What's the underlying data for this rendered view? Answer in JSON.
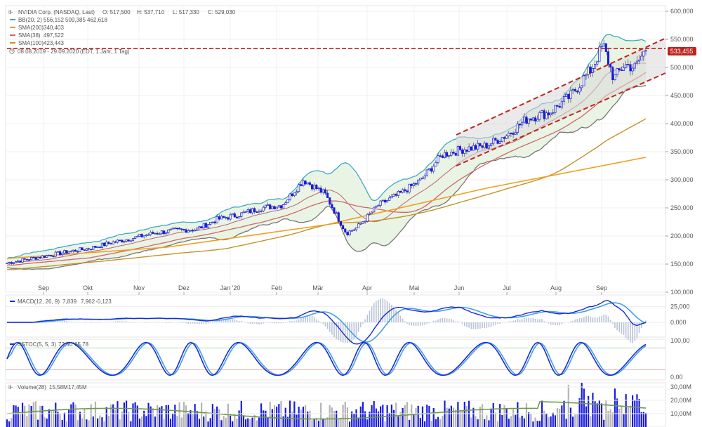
{
  "header": {
    "instrument": "NVIDIA Corp. (NASDAQ, Last)",
    "open": "O: 517,500",
    "high": "H: 537,710",
    "low": "L: 517,330",
    "close": "C: 529,030",
    "bb_label": "BB(20, 2)",
    "bb_values": [
      "556,152",
      "509,385",
      "462,618"
    ],
    "sma200_label": "SMA(200)",
    "sma200_value": "340,403",
    "sma38_label": "SMA(38)",
    "sma38_value": "497,522",
    "sma100_label": "SMA(100)",
    "sma100_value": "423,443",
    "period": "08.08.2019 - 29.09.2020",
    "period_detail": "(EDT, 1 Jahr, 1 Tag)"
  },
  "colors": {
    "candle_up": "#1a1adc",
    "candle_down": "#1a1adc",
    "bb": "#3fa9c8",
    "bb_fill": "#e9f4e4",
    "sma200": "#f0a01e",
    "sma38": "#d4656a",
    "sma100": "#c4922a",
    "price_line": "#c0231e",
    "trend": "#c0231e",
    "macd": "#1a2ad4",
    "signal": "#3fa0e8",
    "sstoc_k": "#1a2ad4",
    "sstoc_d": "#3fa0e8",
    "vol_up": "#1a1adc",
    "vol_down": "#b4b4b4",
    "vol_avg": "#6e9a4a"
  },
  "price_marker": "533,455",
  "panels": {
    "macd": {
      "label": "MACD(12, 26, 9)",
      "v1": "7,839",
      "v2": "7,962",
      "v3": "-0,123"
    },
    "sstoc": {
      "label": "SSTOC(5, 5, 3)",
      "v1": "72,50",
      "v2": "65,78"
    },
    "volume": {
      "label": "Volume(28)",
      "v1": "15,58M",
      "v2": "17,45M"
    }
  },
  "chart_data": {
    "type": "candlestick",
    "x_months": [
      "Sep",
      "Okt",
      "Nov",
      "Dez",
      "Jan '20",
      "Feb",
      "Mär",
      "Apr",
      "Mai",
      "Jun",
      "Jul",
      "Aug",
      "Sep"
    ],
    "price_ticks": [
      "600,000",
      "550,000",
      "500,000",
      "450,000",
      "400,000",
      "350,000",
      "300,000",
      "250,000",
      "200,000",
      "150,000",
      "100,000"
    ],
    "ylim": [
      100,
      600
    ],
    "close_path": [
      [
        "2019-08-08",
        152
      ],
      [
        "2019-08-20",
        158
      ],
      [
        "2019-09-03",
        165
      ],
      [
        "2019-09-17",
        172
      ],
      [
        "2019-10-01",
        178
      ],
      [
        "2019-10-15",
        188
      ],
      [
        "2019-10-29",
        196
      ],
      [
        "2019-11-12",
        205
      ],
      [
        "2019-11-26",
        210
      ],
      [
        "2019-12-10",
        212
      ],
      [
        "2019-12-24",
        230
      ],
      [
        "2020-01-07",
        238
      ],
      [
        "2020-01-21",
        250
      ],
      [
        "2020-02-04",
        255
      ],
      [
        "2020-02-18",
        300
      ],
      [
        "2020-03-03",
        275
      ],
      [
        "2020-03-17",
        205
      ],
      [
        "2020-03-24",
        215
      ],
      [
        "2020-04-07",
        255
      ],
      [
        "2020-04-21",
        275
      ],
      [
        "2020-05-05",
        300
      ],
      [
        "2020-05-19",
        345
      ],
      [
        "2020-06-02",
        355
      ],
      [
        "2020-06-16",
        360
      ],
      [
        "2020-06-30",
        380
      ],
      [
        "2020-07-14",
        410
      ],
      [
        "2020-07-28",
        420
      ],
      [
        "2020-08-11",
        450
      ],
      [
        "2020-08-25",
        500
      ],
      [
        "2020-09-01",
        540
      ],
      [
        "2020-09-08",
        480
      ],
      [
        "2020-09-15",
        505
      ],
      [
        "2020-09-22",
        500
      ],
      [
        "2020-09-29",
        533
      ]
    ],
    "sma200_path": [
      [
        0,
        160
      ],
      [
        0.25,
        180
      ],
      [
        0.5,
        220
      ],
      [
        0.75,
        285
      ],
      [
        1.0,
        340
      ]
    ],
    "macd_ticks": [
      "25,000",
      "0,000"
    ],
    "sstoc_ticks": [
      "100,00",
      "0,00"
    ],
    "volume_ticks": [
      "30,00M",
      "20,00M",
      "10,00M"
    ]
  }
}
